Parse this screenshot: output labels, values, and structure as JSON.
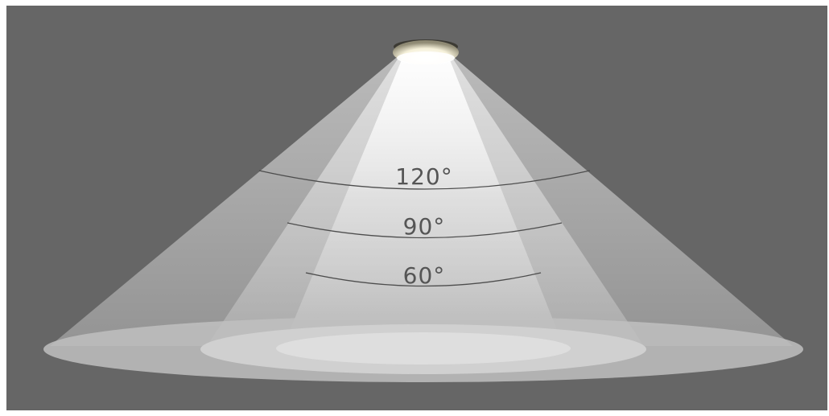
{
  "diagram": {
    "subject": "beam-angle-illustration",
    "background_color": "#666666",
    "page_color": "#ffffff",
    "label_color": "#555555",
    "arc_color": "#4d4d4d",
    "beams": [
      {
        "name": "beam-120",
        "label": "120°",
        "angle_deg": 120
      },
      {
        "name": "beam-90",
        "label": "90°",
        "angle_deg": 90
      },
      {
        "name": "beam-60",
        "label": "60°",
        "angle_deg": 60
      }
    ]
  }
}
